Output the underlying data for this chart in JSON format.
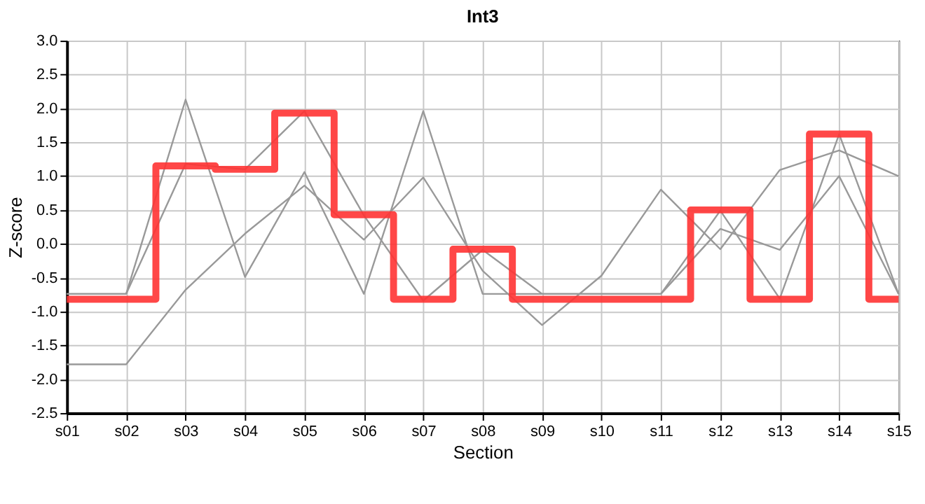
{
  "chart_data": {
    "type": "step",
    "title": "Int3",
    "xlabel": "Section",
    "ylabel": "Z-score",
    "categories": [
      "s01",
      "s02",
      "s03",
      "s04",
      "s05",
      "s06",
      "s07",
      "s08",
      "s09",
      "s10",
      "s11",
      "s12",
      "s13",
      "s14",
      "s15"
    ],
    "series": [
      {
        "type": "line",
        "color": "#999999",
        "values": [
          -0.74,
          -0.74,
          2.13,
          -0.49,
          1.06,
          -0.74,
          1.96,
          -0.74,
          -0.74,
          -0.74,
          -0.74,
          0.49,
          -0.81,
          1.62,
          -0.74
        ]
      },
      {
        "type": "line",
        "color": "#999999",
        "values": [
          -0.74,
          -0.74,
          1.18,
          1.1,
          1.96,
          0.42,
          -0.84,
          -0.09,
          -0.74,
          -0.74,
          -0.74,
          0.22,
          -0.09,
          1.0,
          -0.74
        ]
      },
      {
        "type": "line",
        "color": "#999999",
        "values": [
          -1.78,
          -1.78,
          -0.68,
          0.15,
          0.86,
          0.06,
          0.98,
          -0.4,
          -1.2,
          -0.47,
          0.8,
          -0.08,
          1.09,
          1.38,
          1.0
        ]
      },
      {
        "color": "#ff3333",
        "values": [
          -0.82,
          -0.82,
          1.15,
          1.1,
          1.93,
          0.43,
          -0.82,
          -0.08,
          -0.82,
          -0.82,
          -0.82,
          0.5,
          -0.82,
          1.62,
          -0.82
        ]
      }
    ],
    "ylim": [
      -2.5,
      3.0
    ],
    "yticks": [
      -2.5,
      {
        "value": -2.0,
        "label": "-2.0"
      },
      -1.5,
      {
        "value": -1.0,
        "label": "-1.0"
      },
      -0.5,
      {
        "value": 0,
        "label": "0.0"
      },
      0.5,
      {
        "value": 1.0,
        "label": "1.0"
      },
      1.5,
      {
        "value": 2.0,
        "label": "2.0"
      },
      2.5,
      {
        "value": 3.0,
        "label": "3.0"
      }
    ],
    "grid": true
  }
}
